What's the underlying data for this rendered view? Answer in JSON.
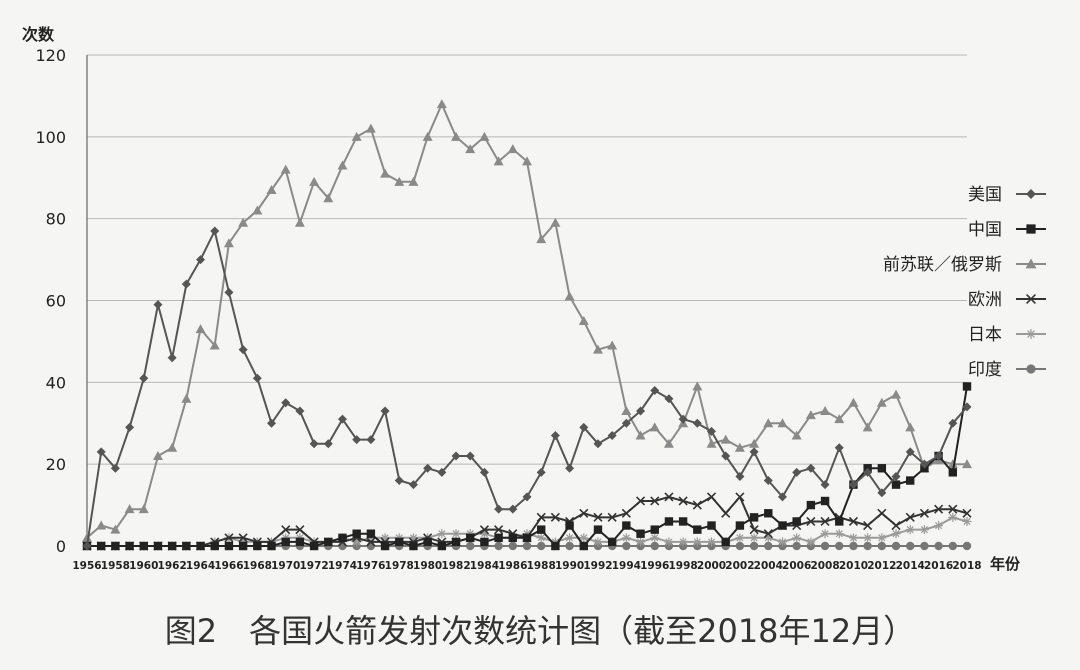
{
  "caption": "图2　各国火箭发射次数统计图（截至2018年12月）",
  "chart_data": {
    "type": "line",
    "ylabel": "次数",
    "xlabel": "年份",
    "ylim": [
      0,
      120
    ],
    "yticks": [
      0,
      20,
      40,
      60,
      80,
      100,
      120
    ],
    "grid": true,
    "legend_position": "right",
    "x": [
      1956,
      1957,
      1958,
      1959,
      1960,
      1961,
      1962,
      1963,
      1964,
      1965,
      1966,
      1967,
      1968,
      1969,
      1970,
      1971,
      1972,
      1973,
      1974,
      1975,
      1976,
      1977,
      1978,
      1979,
      1980,
      1981,
      1982,
      1983,
      1984,
      1985,
      1986,
      1987,
      1988,
      1989,
      1990,
      1991,
      1992,
      1993,
      1994,
      1995,
      1996,
      1997,
      1998,
      1999,
      2000,
      2001,
      2002,
      2003,
      2004,
      2005,
      2006,
      2007,
      2008,
      2009,
      2010,
      2011,
      2012,
      2013,
      2014,
      2015,
      2016,
      2017,
      2018
    ],
    "xticks": [
      1956,
      1958,
      1960,
      1962,
      1964,
      1966,
      1968,
      1970,
      1972,
      1974,
      1976,
      1978,
      1980,
      1982,
      1984,
      1986,
      1988,
      1990,
      1992,
      1994,
      1996,
      1998,
      2000,
      2002,
      2004,
      2006,
      2008,
      2010,
      2012,
      2014,
      2016,
      2018
    ],
    "series": [
      {
        "name": "美国",
        "color": "#555555",
        "marker": "diamond",
        "values": [
          0,
          23,
          19,
          29,
          41,
          59,
          46,
          64,
          70,
          77,
          62,
          48,
          41,
          30,
          35,
          33,
          25,
          25,
          31,
          26,
          26,
          33,
          16,
          15,
          19,
          18,
          22,
          22,
          18,
          9,
          9,
          12,
          18,
          27,
          19,
          29,
          25,
          27,
          30,
          33,
          38,
          36,
          31,
          30,
          28,
          22,
          17,
          23,
          16,
          12,
          18,
          19,
          15,
          24,
          15,
          18,
          13,
          17,
          23,
          20,
          22,
          30,
          34
        ]
      },
      {
        "name": "中国",
        "color": "#222222",
        "marker": "square",
        "values": [
          0,
          0,
          0,
          0,
          0,
          0,
          0,
          0,
          0,
          0,
          0,
          0,
          0,
          0,
          1,
          1,
          0,
          1,
          2,
          3,
          3,
          0,
          1,
          0,
          1,
          0,
          1,
          2,
          1,
          2,
          2,
          2,
          4,
          0,
          5,
          0,
          4,
          1,
          5,
          3,
          4,
          6,
          6,
          4,
          5,
          1,
          5,
          7,
          8,
          5,
          6,
          10,
          11,
          6,
          15,
          19,
          19,
          15,
          16,
          19,
          22,
          18,
          39
        ]
      },
      {
        "name": "前苏联／俄罗斯",
        "color": "#8a8a8a",
        "marker": "triangle",
        "values": [
          2,
          5,
          4,
          9,
          9,
          22,
          24,
          36,
          53,
          49,
          74,
          79,
          82,
          87,
          92,
          79,
          89,
          85,
          93,
          100,
          102,
          91,
          89,
          89,
          100,
          108,
          100,
          97,
          100,
          94,
          97,
          94,
          75,
          79,
          61,
          55,
          48,
          49,
          33,
          27,
          29,
          25,
          30,
          39,
          25,
          26,
          24,
          25,
          30,
          30,
          27,
          32,
          33,
          31,
          35,
          29,
          35,
          37,
          29,
          19,
          21,
          20,
          20
        ]
      },
      {
        "name": "欧洲",
        "color": "#333333",
        "marker": "x",
        "values": [
          0,
          0,
          0,
          0,
          0,
          0,
          0,
          0,
          0,
          1,
          2,
          2,
          1,
          1,
          4,
          4,
          1,
          1,
          1,
          2,
          1,
          1,
          1,
          1,
          2,
          1,
          1,
          2,
          4,
          4,
          3,
          2,
          7,
          7,
          6,
          8,
          7,
          7,
          8,
          11,
          11,
          12,
          11,
          10,
          12,
          8,
          12,
          4,
          3,
          5,
          5,
          6,
          6,
          7,
          6,
          5,
          8,
          5,
          7,
          8,
          9,
          9,
          8
        ]
      },
      {
        "name": "日本",
        "color": "#9a9a9a",
        "marker": "star",
        "values": [
          0,
          0,
          0,
          0,
          0,
          0,
          0,
          0,
          0,
          1,
          2,
          1,
          1,
          1,
          2,
          2,
          1,
          1,
          2,
          1,
          2,
          2,
          2,
          2,
          2,
          3,
          3,
          3,
          3,
          2,
          2,
          3,
          2,
          1,
          2,
          2,
          1,
          1,
          2,
          1,
          2,
          1,
          1,
          1,
          1,
          1,
          2,
          2,
          2,
          1,
          2,
          1,
          3,
          3,
          2,
          2,
          2,
          3,
          4,
          4,
          5,
          7,
          6
        ]
      },
      {
        "name": "印度",
        "color": "#777777",
        "marker": "circle",
        "values": [
          0,
          0,
          0,
          0,
          0,
          0,
          0,
          0,
          0,
          0,
          0,
          0,
          0,
          0,
          0,
          0,
          0,
          0,
          0,
          0,
          0,
          0,
          0,
          0,
          0,
          0,
          0,
          0,
          0,
          0,
          0,
          0,
          0,
          0,
          0,
          0,
          0,
          0,
          0,
          0,
          0,
          0,
          0,
          0,
          0,
          0,
          0,
          0,
          0,
          0,
          0,
          0,
          0,
          0,
          0,
          0,
          0,
          0,
          0,
          0,
          0,
          0,
          0
        ]
      }
    ]
  }
}
